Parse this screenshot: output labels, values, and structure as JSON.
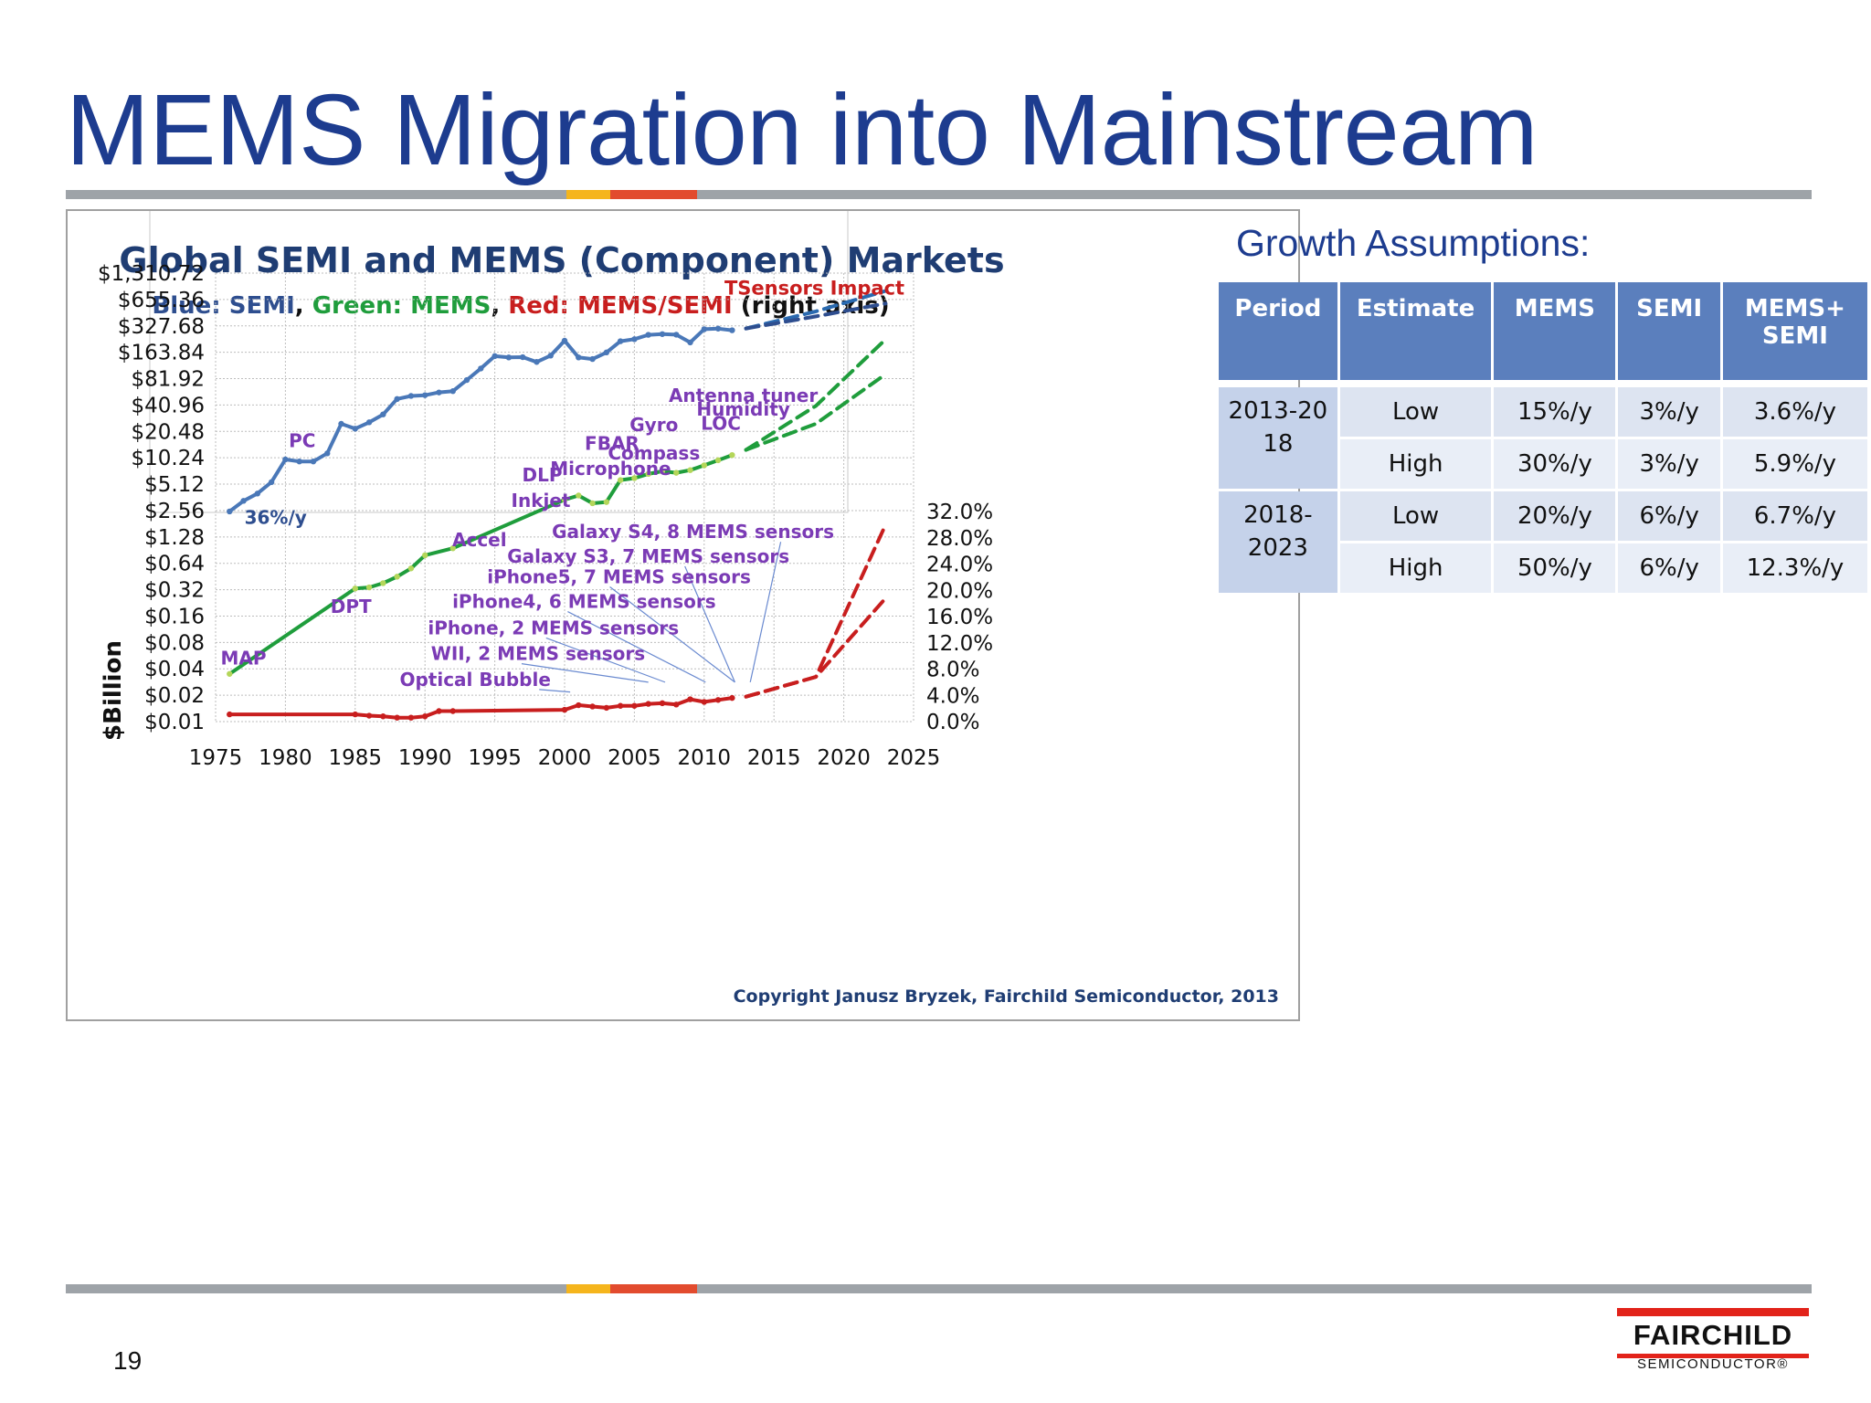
{
  "slide": {
    "title": "MEMS Migration into Mainstream",
    "page_number": "19",
    "growth_title": "Growth Assumptions:"
  },
  "logo": {
    "name": "FAIRCHILD",
    "sub": "SEMICONDUCTOR®",
    "color": "#e2231a"
  },
  "growth_table": {
    "headers": [
      "Period",
      "Estimate",
      "MEMS",
      "SEMI",
      "MEMS+ SEMI"
    ],
    "groups": [
      {
        "period": "2013-2018",
        "rows": [
          {
            "estimate": "Low",
            "mems": "15%/y",
            "semi": "3%/y",
            "combined": "3.6%/y"
          },
          {
            "estimate": "High",
            "mems": "30%/y",
            "semi": "3%/y",
            "combined": "5.9%/y"
          }
        ]
      },
      {
        "period": "2018-2023",
        "rows": [
          {
            "estimate": "Low",
            "mems": "20%/y",
            "semi": "6%/y",
            "combined": "6.7%/y"
          },
          {
            "estimate": "High",
            "mems": "50%/y",
            "semi": "6%/y",
            "combined": "12.3%/y"
          }
        ]
      }
    ]
  },
  "chart_data": {
    "type": "line",
    "title": "Global SEMI and MEMS (Component) Markets",
    "subtitle_parts": [
      {
        "text": "Blue: SEMI",
        "color": "#2e4e8f"
      },
      {
        "text": ", ",
        "color": "#111111"
      },
      {
        "text": "Green: MEMS",
        "color": "#1f9d3c"
      },
      {
        "text": ", ",
        "color": "#111111"
      },
      {
        "text": "Red: MEMS/SEMI",
        "color": "#c81e1e"
      },
      {
        "text": " (right axis)",
        "color": "#111111"
      }
    ],
    "ylabel": "$Billion",
    "x_ticks": [
      1975,
      1980,
      1985,
      1990,
      1995,
      2000,
      2005,
      2010,
      2015,
      2020,
      2025
    ],
    "xlim": [
      1975,
      2025
    ],
    "y_log_base": 2,
    "y_ticks": [
      "$1,310.72",
      "$655.36",
      "$327.68",
      "$163.84",
      "$81.92",
      "$40.96",
      "$20.48",
      "$10.24",
      "$5.12",
      "$2.56",
      "$1.28",
      "$0.64",
      "$0.32",
      "$0.16",
      "$0.08",
      "$0.04",
      "$0.02",
      "$0.01"
    ],
    "y_values": [
      1310.72,
      655.36,
      327.68,
      163.84,
      81.92,
      40.96,
      20.48,
      10.24,
      5.12,
      2.56,
      1.28,
      0.64,
      0.32,
      0.16,
      0.08,
      0.04,
      0.02,
      0.01
    ],
    "ylim": [
      0.01,
      1310.72
    ],
    "y2_ticks": [
      "32.0%",
      "28.0%",
      "24.0%",
      "20.0%",
      "16.0%",
      "12.0%",
      "8.0%",
      "4.0%",
      "0.0%"
    ],
    "y2_values": [
      32,
      28,
      24,
      20,
      16,
      12,
      8,
      4,
      0
    ],
    "y2lim": [
      0,
      32
    ],
    "grid": true,
    "series": [
      {
        "name": "SEMI",
        "color": "#4a78b8",
        "points": [
          [
            1976,
            2.5
          ],
          [
            1977,
            3.3
          ],
          [
            1978,
            4.0
          ],
          [
            1979,
            5.4
          ],
          [
            1980,
            9.8
          ],
          [
            1981,
            9.3
          ],
          [
            1982,
            9.3
          ],
          [
            1983,
            11.5
          ],
          [
            1984,
            25
          ],
          [
            1985,
            22
          ],
          [
            1986,
            26
          ],
          [
            1987,
            32
          ],
          [
            1988,
            48
          ],
          [
            1989,
            52
          ],
          [
            1990,
            53
          ],
          [
            1991,
            57
          ],
          [
            1992,
            59
          ],
          [
            1993,
            79
          ],
          [
            1994,
            107
          ],
          [
            1995,
            148
          ],
          [
            1996,
            143
          ],
          [
            1997,
            144
          ],
          [
            1998,
            127
          ],
          [
            1999,
            150
          ],
          [
            2000,
            222
          ],
          [
            2001,
            143
          ],
          [
            2002,
            137
          ],
          [
            2003,
            163
          ],
          [
            2004,
            219
          ],
          [
            2005,
            231
          ],
          [
            2006,
            259
          ],
          [
            2007,
            264
          ],
          [
            2008,
            260
          ],
          [
            2009,
            212
          ],
          [
            2010,
            300
          ],
          [
            2011,
            305
          ],
          [
            2012,
            292
          ]
        ]
      },
      {
        "name": "SEMI projection",
        "color": "#2a6ab0",
        "dashed": true,
        "points": [
          [
            2013,
            306
          ],
          [
            2018,
            480
          ],
          [
            2023,
            820
          ]
        ]
      },
      {
        "name": "SEMI projection (low)",
        "color": "#2e4e8f",
        "dashed": true,
        "points": [
          [
            2013,
            306
          ],
          [
            2018,
            420
          ],
          [
            2023,
            590
          ]
        ]
      },
      {
        "name": "MEMS",
        "color": "#1f9d3c",
        "points": [
          [
            1976,
            0.035
          ],
          [
            1985,
            0.33
          ],
          [
            1986,
            0.34
          ],
          [
            1987,
            0.38
          ],
          [
            1988,
            0.45
          ],
          [
            1989,
            0.56
          ],
          [
            1990,
            0.79
          ],
          [
            1992,
            0.95
          ],
          [
            2000,
            3.4
          ],
          [
            2001,
            3.8
          ],
          [
            2002,
            3.1
          ],
          [
            2003,
            3.2
          ],
          [
            2004,
            5.7
          ],
          [
            2005,
            6.0
          ],
          [
            2006,
            6.7
          ],
          [
            2007,
            7.2
          ],
          [
            2008,
            6.9
          ],
          [
            2009,
            7.4
          ],
          [
            2010,
            8.4
          ],
          [
            2011,
            9.6
          ],
          [
            2012,
            11.0
          ]
        ]
      },
      {
        "name": "MEMS projection (low)",
        "color": "#1f9d3c",
        "dashed": true,
        "points": [
          [
            2013,
            12.6
          ],
          [
            2018,
            25
          ],
          [
            2023,
            92
          ]
        ]
      },
      {
        "name": "MEMS projection (high)",
        "color": "#1f9d3c",
        "dashed": true,
        "points": [
          [
            2013,
            12.6
          ],
          [
            2018,
            40
          ],
          [
            2023,
            230
          ]
        ]
      },
      {
        "name": "MEMS/SEMI",
        "axis": "right",
        "color": "#c81e1e",
        "points": [
          [
            1976,
            1.1
          ],
          [
            1985,
            1.1
          ],
          [
            1986,
            0.9
          ],
          [
            1987,
            0.8
          ],
          [
            1988,
            0.6
          ],
          [
            1989,
            0.6
          ],
          [
            1990,
            0.8
          ],
          [
            1991,
            1.6
          ],
          [
            1992,
            1.6
          ],
          [
            2000,
            1.8
          ],
          [
            2001,
            2.5
          ],
          [
            2002,
            2.3
          ],
          [
            2003,
            2.1
          ],
          [
            2004,
            2.4
          ],
          [
            2005,
            2.4
          ],
          [
            2006,
            2.7
          ],
          [
            2007,
            2.8
          ],
          [
            2008,
            2.6
          ],
          [
            2009,
            3.4
          ],
          [
            2010,
            3.0
          ],
          [
            2011,
            3.3
          ],
          [
            2012,
            3.6
          ]
        ]
      },
      {
        "name": "MEMS/SEMI projection (low)",
        "axis": "right",
        "color": "#c81e1e",
        "dashed": true,
        "points": [
          [
            2013,
            3.8
          ],
          [
            2018,
            6.8
          ],
          [
            2023,
            18.8
          ]
        ]
      },
      {
        "name": "MEMS/SEMI projection (high)",
        "axis": "right",
        "color": "#c81e1e",
        "dashed": true,
        "points": [
          [
            2013,
            3.8
          ],
          [
            2018,
            6.8
          ],
          [
            2023,
            30.0
          ]
        ]
      }
    ],
    "annotations": [
      {
        "id": "pc",
        "text": "PC",
        "x": 1981.2,
        "y": 16.5,
        "color": "#7b3bb5"
      },
      {
        "id": "growth-36",
        "text": "36%/y",
        "x": 1979.3,
        "y": 2.2,
        "color": "#2e4e8f"
      },
      {
        "id": "map",
        "text": "MAP",
        "x": 1977.0,
        "y": 0.054,
        "color": "#7b3bb5"
      },
      {
        "id": "dpt",
        "text": "DPT",
        "x": 1984.7,
        "y": 0.21,
        "color": "#7b3bb5"
      },
      {
        "id": "accel",
        "text": "Accel",
        "x": 1993.9,
        "y": 1.21,
        "color": "#7b3bb5"
      },
      {
        "id": "dlp",
        "text": "DLP",
        "x": 1998.4,
        "y": 6.7,
        "color": "#7b3bb5"
      },
      {
        "id": "inkjet",
        "text": "Inkjet",
        "x": 1998.3,
        "y": 3.4,
        "color": "#7b3bb5"
      },
      {
        "id": "fbar",
        "text": "FBAR",
        "x": 2003.4,
        "y": 15.3,
        "color": "#7b3bb5"
      },
      {
        "id": "microphone",
        "text": "Microphone",
        "x": 2003.3,
        "y": 7.9,
        "color": "#7b3bb5"
      },
      {
        "id": "gyro",
        "text": "Gyro",
        "x": 2006.4,
        "y": 25.0,
        "color": "#7b3bb5"
      },
      {
        "id": "compass",
        "text": "Compass",
        "x": 2006.4,
        "y": 11.9,
        "color": "#7b3bb5"
      },
      {
        "id": "antenna",
        "text": "Antenna tuner",
        "x": 2012.8,
        "y": 54.0,
        "color": "#7b3bb5"
      },
      {
        "id": "humidity",
        "text": "Humidity",
        "x": 2012.8,
        "y": 37.5,
        "color": "#7b3bb5"
      },
      {
        "id": "loc",
        "text": "LOC",
        "x": 2011.2,
        "y": 26.0,
        "color": "#7b3bb5"
      },
      {
        "id": "tsensors",
        "text": "TSensors Impact",
        "x": 2017.9,
        "y": 900,
        "color": "#c81e1e"
      },
      {
        "id": "galaxy-s4",
        "text": "Galaxy S4, 8 MEMS sensors",
        "x": 2009.2,
        "y": 1.5,
        "color": "#7b3bb5"
      },
      {
        "id": "galaxy-s3",
        "text": "Galaxy S3, 7 MEMS sensors",
        "x": 2006.0,
        "y": 0.79,
        "color": "#7b3bb5"
      },
      {
        "id": "iphone5",
        "text": "iPhone5, 7 MEMS sensors",
        "x": 2003.9,
        "y": 0.46,
        "color": "#7b3bb5"
      },
      {
        "id": "iphone4",
        "text": "iPhone4, 6 MEMS sensors",
        "x": 2001.4,
        "y": 0.24,
        "color": "#7b3bb5"
      },
      {
        "id": "iphone",
        "text": "iPhone, 2 MEMS sensors",
        "x": 1999.2,
        "y": 0.12,
        "color": "#7b3bb5"
      },
      {
        "id": "wii",
        "text": "WII, 2 MEMS sensors",
        "x": 1998.1,
        "y": 0.061,
        "color": "#7b3bb5"
      },
      {
        "id": "optical",
        "text": "Optical Bubble",
        "x": 1993.6,
        "y": 0.031,
        "color": "#7b3bb5"
      }
    ],
    "copyright": "Copyright Janusz Bryzek, Fairchild Semiconductor, 2013"
  }
}
